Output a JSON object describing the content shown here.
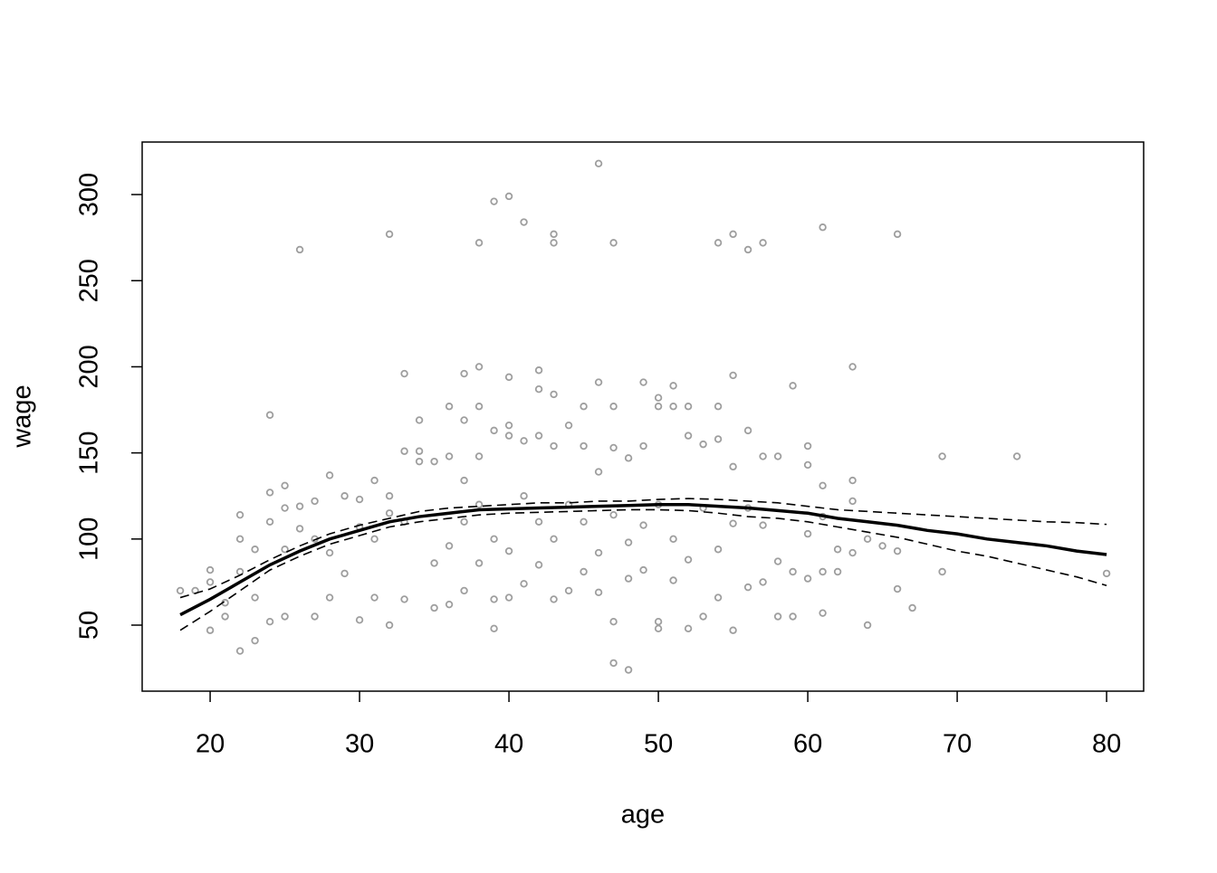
{
  "chart_data": {
    "type": "scatter",
    "xlabel": "age",
    "ylabel": "wage",
    "xlim": [
      15.45,
      82.48
    ],
    "ylim": [
      11.66,
      330.5
    ],
    "xticks": [
      20,
      30,
      40,
      50,
      60,
      70,
      80
    ],
    "yticks": [
      50,
      100,
      150,
      200,
      250,
      300
    ],
    "points": {
      "color": "#9e9e9e",
      "x": [
        26,
        32,
        38,
        39,
        40,
        41,
        43,
        43,
        46,
        47,
        54,
        55,
        56,
        57,
        61,
        66,
        24,
        33,
        37,
        38,
        40,
        42,
        42,
        43,
        46,
        49,
        51,
        55,
        59,
        63,
        69,
        74,
        80,
        18,
        19,
        20,
        20,
        20,
        22,
        22,
        22,
        23,
        23,
        24,
        24,
        24,
        25,
        25,
        25,
        26,
        26,
        27,
        27,
        28,
        28,
        29,
        29,
        30,
        30,
        31,
        31,
        32,
        32,
        33,
        33,
        34,
        34,
        34,
        35,
        35,
        36,
        36,
        36,
        37,
        37,
        37,
        38,
        38,
        38,
        39,
        39,
        39,
        40,
        40,
        40,
        41,
        41,
        42,
        42,
        43,
        43,
        44,
        44,
        45,
        45,
        45,
        46,
        46,
        47,
        47,
        47,
        47,
        48,
        48,
        48,
        49,
        49,
        50,
        50,
        50,
        50,
        51,
        51,
        52,
        52,
        52,
        53,
        53,
        54,
        54,
        54,
        55,
        55,
        56,
        56,
        57,
        57,
        58,
        58,
        59,
        59,
        60,
        60,
        60,
        61,
        61,
        61,
        62,
        62,
        63,
        63,
        64,
        64,
        65,
        66,
        66,
        67,
        69,
        21,
        21,
        22,
        23,
        25,
        27,
        28,
        30,
        31,
        32,
        33,
        35,
        36,
        37,
        38,
        39,
        40,
        41,
        42,
        43,
        44,
        45,
        46,
        47,
        48,
        49,
        50,
        51,
        52,
        53,
        54,
        55,
        56,
        57,
        58,
        60,
        61,
        63
      ],
      "y": [
        268,
        277,
        272,
        296,
        299,
        284,
        277,
        272,
        318,
        272,
        272,
        277,
        268,
        272,
        281,
        277,
        172,
        196,
        196,
        200,
        194,
        198,
        187,
        184,
        191,
        191,
        189,
        195,
        189,
        200,
        148,
        148,
        80,
        70,
        70,
        47,
        82,
        75,
        35,
        114,
        100,
        41,
        94,
        52,
        127,
        110,
        131,
        118,
        55,
        119,
        106,
        122,
        55,
        137,
        66,
        125,
        80,
        123,
        53,
        134,
        66,
        50,
        125,
        151,
        65,
        169,
        151,
        145,
        145,
        60,
        177,
        148,
        62,
        169,
        134,
        70,
        177,
        148,
        86,
        163,
        48,
        65,
        166,
        160,
        66,
        157,
        74,
        160,
        85,
        65,
        154,
        166,
        70,
        177,
        154,
        81,
        139,
        69,
        177,
        153,
        52,
        28,
        24,
        147,
        77,
        154,
        82,
        182,
        177,
        52,
        48,
        177,
        76,
        177,
        160,
        48,
        155,
        55,
        177,
        158,
        66,
        47,
        142,
        163,
        72,
        148,
        75,
        148,
        55,
        81,
        55,
        154,
        143,
        77,
        131,
        57,
        81,
        94,
        81,
        134,
        92,
        100,
        50,
        96,
        93,
        71,
        60,
        81,
        55,
        63,
        81,
        66,
        94,
        100,
        92,
        107,
        100,
        115,
        110,
        86,
        96,
        110,
        120,
        100,
        93,
        125,
        110,
        100,
        120,
        110,
        92,
        114,
        98,
        108,
        120,
        100,
        88,
        118,
        94,
        109,
        118,
        108,
        87,
        103,
        113,
        122
      ]
    },
    "lines": [
      {
        "style": "solid",
        "color": "#000000",
        "x": [
          18,
          20,
          22,
          24,
          26,
          28,
          30,
          32,
          34,
          36,
          38,
          40,
          42,
          44,
          46,
          48,
          50,
          52,
          54,
          56,
          58,
          60,
          62,
          64,
          66,
          68,
          70,
          72,
          74,
          76,
          78,
          80
        ],
        "y": [
          56,
          65,
          75,
          85,
          93,
          100,
          105,
          110,
          113,
          115,
          117,
          117.5,
          118,
          118.5,
          119,
          119.5,
          120,
          120,
          119,
          118,
          116.5,
          115,
          112,
          110,
          108,
          105,
          103,
          100,
          98,
          96,
          93,
          91
        ]
      },
      {
        "style": "dashed",
        "color": "#000000",
        "x": [
          18,
          20,
          22,
          24,
          26,
          28,
          30,
          32,
          34,
          36,
          38,
          40,
          42,
          44,
          46,
          48,
          50,
          52,
          54,
          56,
          58,
          60,
          62,
          64,
          66,
          68,
          70,
          72,
          74,
          76,
          78,
          80
        ],
        "y": [
          66,
          71,
          79,
          88,
          96,
          103,
          108,
          112,
          116,
          118,
          119,
          120,
          121,
          121,
          122,
          122,
          123,
          123.5,
          123,
          122,
          121,
          119,
          117,
          116,
          115,
          114,
          113,
          112,
          111,
          110,
          109.5,
          108.5
        ]
      },
      {
        "style": "dashed",
        "color": "#000000",
        "x": [
          18,
          20,
          22,
          24,
          26,
          28,
          30,
          32,
          34,
          36,
          38,
          40,
          42,
          44,
          46,
          48,
          50,
          52,
          54,
          56,
          58,
          60,
          62,
          64,
          66,
          68,
          70,
          72,
          74,
          76,
          78,
          80
        ],
        "y": [
          47,
          58,
          70,
          82,
          90,
          97,
          102,
          107,
          110,
          112,
          114,
          115,
          115.5,
          116,
          116.5,
          117,
          117,
          116.5,
          115,
          113,
          112,
          110,
          107,
          104,
          101,
          97,
          93,
          90,
          86,
          82,
          78,
          73
        ]
      }
    ]
  }
}
